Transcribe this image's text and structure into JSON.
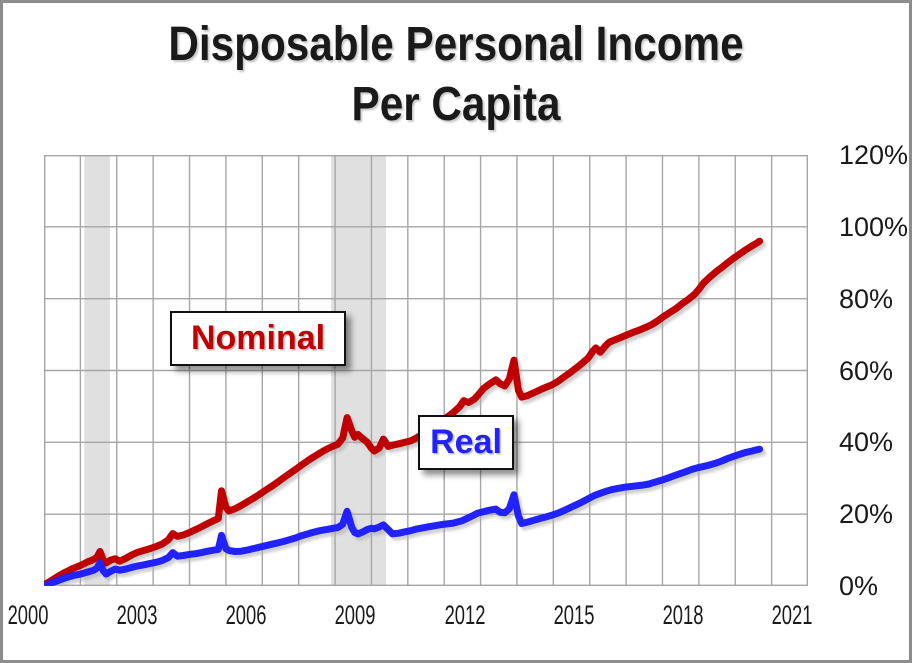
{
  "title": {
    "line1": "Disposable Personal Income",
    "line2": "Per Capita"
  },
  "labels": {
    "nominal": "Nominal",
    "real": "Real"
  },
  "colors": {
    "nominal": "#c00000",
    "real": "#2222ff",
    "grid": "#a6a6a6",
    "plot_border": "#a6a6a6",
    "recession_band": "#e0e0e0",
    "frame_border": "#8c8c8c",
    "text": "#1a1a1a",
    "line_shadow": "#ababab"
  },
  "chart_data": {
    "type": "line",
    "title": "Disposable Personal Income Per Capita",
    "xlabel": "",
    "ylabel": "",
    "xlim": [
      2000,
      2021
    ],
    "ylim": [
      0,
      120
    ],
    "grid": true,
    "x_grid_step_years": 1,
    "y_grid_step_pct": 20,
    "x_ticks": [
      2000,
      2003,
      2006,
      2009,
      2012,
      2015,
      2018,
      2021
    ],
    "y_ticks": {
      "values": [
        120,
        100,
        80,
        60,
        40,
        20,
        0
      ],
      "labels": [
        "120%",
        "100%",
        "80%",
        "60%",
        "40%",
        "20%",
        "0%"
      ]
    },
    "legend_position": "on-chart-label-boxes",
    "recession_bands": [
      {
        "start": 2001.11,
        "end": 2001.81
      },
      {
        "start": 2007.89,
        "end": 2009.4
      }
    ],
    "series": [
      {
        "name": "Nominal",
        "color": "#c00000",
        "points": [
          [
            2000.0,
            0.3
          ],
          [
            2000.2,
            1.5
          ],
          [
            2000.4,
            2.8
          ],
          [
            2000.6,
            3.9
          ],
          [
            2000.8,
            4.9
          ],
          [
            2001.0,
            5.7
          ],
          [
            2001.2,
            6.7
          ],
          [
            2001.37,
            7.4
          ],
          [
            2001.46,
            8.1
          ],
          [
            2001.54,
            9.6
          ],
          [
            2001.63,
            7.1
          ],
          [
            2001.71,
            6.4
          ],
          [
            2001.83,
            7.2
          ],
          [
            2001.96,
            7.6
          ],
          [
            2002.08,
            6.9
          ],
          [
            2002.25,
            7.7
          ],
          [
            2002.42,
            8.7
          ],
          [
            2002.58,
            9.4
          ],
          [
            2002.75,
            9.9
          ],
          [
            2002.92,
            10.4
          ],
          [
            2003.08,
            11.0
          ],
          [
            2003.25,
            11.7
          ],
          [
            2003.42,
            12.9
          ],
          [
            2003.54,
            14.6
          ],
          [
            2003.67,
            13.8
          ],
          [
            2003.83,
            14.2
          ],
          [
            2004.0,
            14.9
          ],
          [
            2004.17,
            15.7
          ],
          [
            2004.33,
            16.5
          ],
          [
            2004.5,
            17.4
          ],
          [
            2004.67,
            18.2
          ],
          [
            2004.79,
            18.8
          ],
          [
            2004.88,
            26.5
          ],
          [
            2005.0,
            21.9
          ],
          [
            2005.08,
            20.9
          ],
          [
            2005.25,
            21.5
          ],
          [
            2005.42,
            22.4
          ],
          [
            2005.58,
            23.4
          ],
          [
            2005.75,
            24.4
          ],
          [
            2005.92,
            25.5
          ],
          [
            2006.08,
            26.6
          ],
          [
            2006.25,
            27.7
          ],
          [
            2006.42,
            28.9
          ],
          [
            2006.58,
            30.1
          ],
          [
            2006.75,
            31.3
          ],
          [
            2006.92,
            32.5
          ],
          [
            2007.08,
            33.7
          ],
          [
            2007.25,
            34.9
          ],
          [
            2007.42,
            36.0
          ],
          [
            2007.58,
            37.0
          ],
          [
            2007.75,
            38.0
          ],
          [
            2007.92,
            38.8
          ],
          [
            2008.08,
            39.5
          ],
          [
            2008.21,
            41.2
          ],
          [
            2008.33,
            46.9
          ],
          [
            2008.46,
            43.2
          ],
          [
            2008.54,
            41.4
          ],
          [
            2008.63,
            42.2
          ],
          [
            2008.75,
            41.1
          ],
          [
            2008.88,
            40.1
          ],
          [
            2009.0,
            38.4
          ],
          [
            2009.08,
            37.6
          ],
          [
            2009.21,
            38.4
          ],
          [
            2009.33,
            40.9
          ],
          [
            2009.46,
            38.9
          ],
          [
            2009.58,
            39.2
          ],
          [
            2009.75,
            39.6
          ],
          [
            2009.92,
            40.0
          ],
          [
            2010.08,
            40.4
          ],
          [
            2010.25,
            41.3
          ],
          [
            2010.42,
            42.4
          ],
          [
            2010.58,
            43.3
          ],
          [
            2010.75,
            44.4
          ],
          [
            2010.92,
            45.7
          ],
          [
            2011.08,
            47.0
          ],
          [
            2011.25,
            48.3
          ],
          [
            2011.42,
            49.9
          ],
          [
            2011.54,
            51.6
          ],
          [
            2011.67,
            51.1
          ],
          [
            2011.83,
            52.0
          ],
          [
            2011.96,
            53.5
          ],
          [
            2012.08,
            55.0
          ],
          [
            2012.25,
            56.3
          ],
          [
            2012.42,
            57.4
          ],
          [
            2012.54,
            56.3
          ],
          [
            2012.67,
            55.7
          ],
          [
            2012.79,
            57.6
          ],
          [
            2012.92,
            62.9
          ],
          [
            2013.04,
            54.5
          ],
          [
            2013.13,
            52.6
          ],
          [
            2013.29,
            53.0
          ],
          [
            2013.46,
            53.8
          ],
          [
            2013.63,
            54.6
          ],
          [
            2013.79,
            55.3
          ],
          [
            2013.96,
            56.0
          ],
          [
            2014.13,
            57.0
          ],
          [
            2014.29,
            58.2
          ],
          [
            2014.46,
            59.4
          ],
          [
            2014.63,
            60.7
          ],
          [
            2014.79,
            62.0
          ],
          [
            2014.96,
            63.5
          ],
          [
            2015.08,
            65.3
          ],
          [
            2015.17,
            66.3
          ],
          [
            2015.29,
            65.1
          ],
          [
            2015.42,
            66.7
          ],
          [
            2015.54,
            67.9
          ],
          [
            2015.71,
            68.6
          ],
          [
            2015.88,
            69.3
          ],
          [
            2016.04,
            70.0
          ],
          [
            2016.21,
            70.7
          ],
          [
            2016.38,
            71.3
          ],
          [
            2016.54,
            72.0
          ],
          [
            2016.71,
            72.8
          ],
          [
            2016.88,
            73.9
          ],
          [
            2017.04,
            75.1
          ],
          [
            2017.21,
            76.2
          ],
          [
            2017.38,
            77.3
          ],
          [
            2017.54,
            78.6
          ],
          [
            2017.71,
            79.8
          ],
          [
            2017.88,
            81.2
          ],
          [
            2018.0,
            82.6
          ],
          [
            2018.13,
            84.4
          ],
          [
            2018.29,
            85.9
          ],
          [
            2018.46,
            87.4
          ],
          [
            2018.63,
            88.7
          ],
          [
            2018.79,
            90.0
          ],
          [
            2018.96,
            91.3
          ],
          [
            2019.13,
            92.5
          ],
          [
            2019.29,
            93.6
          ],
          [
            2019.46,
            94.7
          ],
          [
            2019.58,
            95.4
          ],
          [
            2019.67,
            96.0
          ]
        ]
      },
      {
        "name": "Real",
        "color": "#2222ff",
        "points": [
          [
            2000.0,
            0.0
          ],
          [
            2000.2,
            0.8
          ],
          [
            2000.4,
            1.6
          ],
          [
            2000.6,
            2.3
          ],
          [
            2000.8,
            2.9
          ],
          [
            2001.0,
            3.3
          ],
          [
            2001.2,
            3.9
          ],
          [
            2001.37,
            4.4
          ],
          [
            2001.46,
            5.0
          ],
          [
            2001.54,
            6.4
          ],
          [
            2001.63,
            4.3
          ],
          [
            2001.71,
            3.3
          ],
          [
            2001.83,
            4.1
          ],
          [
            2001.96,
            4.7
          ],
          [
            2002.08,
            4.4
          ],
          [
            2002.25,
            4.7
          ],
          [
            2002.42,
            5.2
          ],
          [
            2002.58,
            5.6
          ],
          [
            2002.75,
            5.9
          ],
          [
            2002.92,
            6.3
          ],
          [
            2003.08,
            6.6
          ],
          [
            2003.25,
            7.1
          ],
          [
            2003.42,
            7.9
          ],
          [
            2003.54,
            9.3
          ],
          [
            2003.67,
            8.3
          ],
          [
            2003.83,
            8.5
          ],
          [
            2004.0,
            8.8
          ],
          [
            2004.17,
            9.0
          ],
          [
            2004.33,
            9.3
          ],
          [
            2004.5,
            9.7
          ],
          [
            2004.67,
            10.0
          ],
          [
            2004.79,
            10.2
          ],
          [
            2004.88,
            14.1
          ],
          [
            2005.0,
            10.4
          ],
          [
            2005.08,
            9.9
          ],
          [
            2005.25,
            9.6
          ],
          [
            2005.42,
            9.7
          ],
          [
            2005.58,
            10.0
          ],
          [
            2005.75,
            10.4
          ],
          [
            2005.92,
            10.8
          ],
          [
            2006.08,
            11.2
          ],
          [
            2006.25,
            11.6
          ],
          [
            2006.42,
            12.0
          ],
          [
            2006.58,
            12.4
          ],
          [
            2006.75,
            12.9
          ],
          [
            2006.92,
            13.4
          ],
          [
            2007.08,
            14.0
          ],
          [
            2007.25,
            14.5
          ],
          [
            2007.42,
            15.0
          ],
          [
            2007.58,
            15.4
          ],
          [
            2007.75,
            15.7
          ],
          [
            2007.92,
            16.0
          ],
          [
            2008.08,
            16.3
          ],
          [
            2008.21,
            17.2
          ],
          [
            2008.33,
            20.8
          ],
          [
            2008.46,
            16.3
          ],
          [
            2008.54,
            14.9
          ],
          [
            2008.63,
            14.5
          ],
          [
            2008.75,
            15.0
          ],
          [
            2008.88,
            15.7
          ],
          [
            2009.0,
            16.1
          ],
          [
            2009.08,
            15.9
          ],
          [
            2009.21,
            16.4
          ],
          [
            2009.33,
            17.0
          ],
          [
            2009.46,
            15.7
          ],
          [
            2009.58,
            14.5
          ],
          [
            2009.75,
            14.7
          ],
          [
            2009.92,
            15.1
          ],
          [
            2010.08,
            15.4
          ],
          [
            2010.25,
            15.9
          ],
          [
            2010.42,
            16.2
          ],
          [
            2010.58,
            16.5
          ],
          [
            2010.75,
            16.8
          ],
          [
            2010.92,
            17.1
          ],
          [
            2011.08,
            17.3
          ],
          [
            2011.25,
            17.5
          ],
          [
            2011.5,
            18.2
          ],
          [
            2011.75,
            19.4
          ],
          [
            2011.92,
            20.3
          ],
          [
            2012.08,
            20.7
          ],
          [
            2012.25,
            21.1
          ],
          [
            2012.42,
            21.4
          ],
          [
            2012.54,
            20.5
          ],
          [
            2012.67,
            20.4
          ],
          [
            2012.79,
            21.5
          ],
          [
            2012.92,
            25.4
          ],
          [
            2013.04,
            19.5
          ],
          [
            2013.13,
            17.4
          ],
          [
            2013.29,
            17.8
          ],
          [
            2013.46,
            18.3
          ],
          [
            2013.63,
            18.8
          ],
          [
            2013.79,
            19.2
          ],
          [
            2013.96,
            19.7
          ],
          [
            2014.13,
            20.3
          ],
          [
            2014.29,
            21.0
          ],
          [
            2014.46,
            21.8
          ],
          [
            2014.63,
            22.6
          ],
          [
            2014.79,
            23.4
          ],
          [
            2014.96,
            24.3
          ],
          [
            2015.13,
            25.2
          ],
          [
            2015.29,
            25.8
          ],
          [
            2015.46,
            26.4
          ],
          [
            2015.63,
            26.9
          ],
          [
            2015.79,
            27.2
          ],
          [
            2015.96,
            27.5
          ],
          [
            2016.13,
            27.7
          ],
          [
            2016.29,
            27.9
          ],
          [
            2016.46,
            28.1
          ],
          [
            2016.63,
            28.4
          ],
          [
            2016.79,
            28.9
          ],
          [
            2016.96,
            29.4
          ],
          [
            2017.13,
            30.0
          ],
          [
            2017.29,
            30.6
          ],
          [
            2017.46,
            31.2
          ],
          [
            2017.63,
            31.8
          ],
          [
            2017.79,
            32.4
          ],
          [
            2017.96,
            32.9
          ],
          [
            2018.13,
            33.3
          ],
          [
            2018.29,
            33.7
          ],
          [
            2018.46,
            34.2
          ],
          [
            2018.63,
            34.8
          ],
          [
            2018.79,
            35.5
          ],
          [
            2018.96,
            36.1
          ],
          [
            2019.13,
            36.7
          ],
          [
            2019.29,
            37.2
          ],
          [
            2019.46,
            37.6
          ],
          [
            2019.58,
            37.9
          ],
          [
            2019.67,
            38.1
          ]
        ]
      }
    ]
  }
}
